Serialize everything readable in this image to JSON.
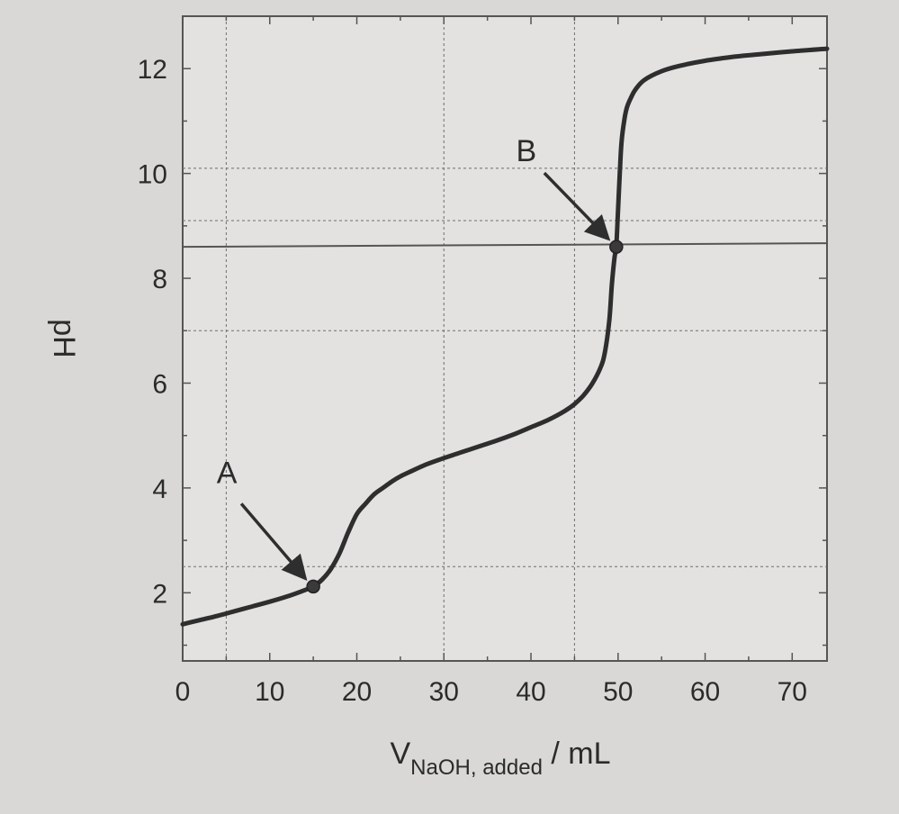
{
  "chart_data": {
    "type": "line",
    "title": "",
    "xlabel": {
      "main": "V",
      "subscript": "NaOH, added",
      "unit": " / mL"
    },
    "ylabel": "pH",
    "xlim": [
      0,
      74
    ],
    "ylim": [
      0.7,
      13
    ],
    "x_ticks": [
      0,
      10,
      20,
      30,
      40,
      50,
      60,
      70
    ],
    "y_ticks": [
      2,
      4,
      6,
      8,
      10,
      12
    ],
    "grid": true,
    "vertical_guides_x": [
      5,
      30,
      45
    ],
    "horizontal_guides_y": [
      2.5,
      7,
      9.1,
      10.1
    ],
    "reference_line_y": 8.6,
    "series": [
      {
        "x": [
          0,
          2,
          4,
          6,
          8,
          10,
          12,
          14,
          15,
          16,
          17,
          18,
          19,
          20,
          21,
          22,
          23,
          24,
          25,
          26,
          28,
          30,
          32,
          34,
          36,
          38,
          40,
          42,
          44,
          45,
          46,
          47,
          48,
          48.5,
          49,
          49.3,
          49.6,
          49.8,
          50,
          50.2,
          50.4,
          50.7,
          51,
          51.5,
          52,
          53,
          55,
          57,
          60,
          63,
          66,
          70,
          74
        ],
        "values": [
          1.4,
          1.48,
          1.56,
          1.65,
          1.74,
          1.83,
          1.93,
          2.05,
          2.12,
          2.25,
          2.45,
          2.75,
          3.15,
          3.5,
          3.7,
          3.88,
          4.0,
          4.12,
          4.22,
          4.3,
          4.45,
          4.57,
          4.68,
          4.79,
          4.9,
          5.02,
          5.16,
          5.3,
          5.48,
          5.6,
          5.76,
          5.98,
          6.3,
          6.6,
          7.2,
          7.9,
          8.4,
          8.6,
          9.3,
          10.0,
          10.6,
          11.0,
          11.25,
          11.45,
          11.6,
          11.78,
          11.95,
          12.05,
          12.15,
          12.22,
          12.27,
          12.33,
          12.38
        ]
      }
    ],
    "annotations": [
      {
        "label": "A",
        "x": 15,
        "y": 2.12
      },
      {
        "label": "B",
        "x": 49.8,
        "y": 8.6
      }
    ]
  }
}
